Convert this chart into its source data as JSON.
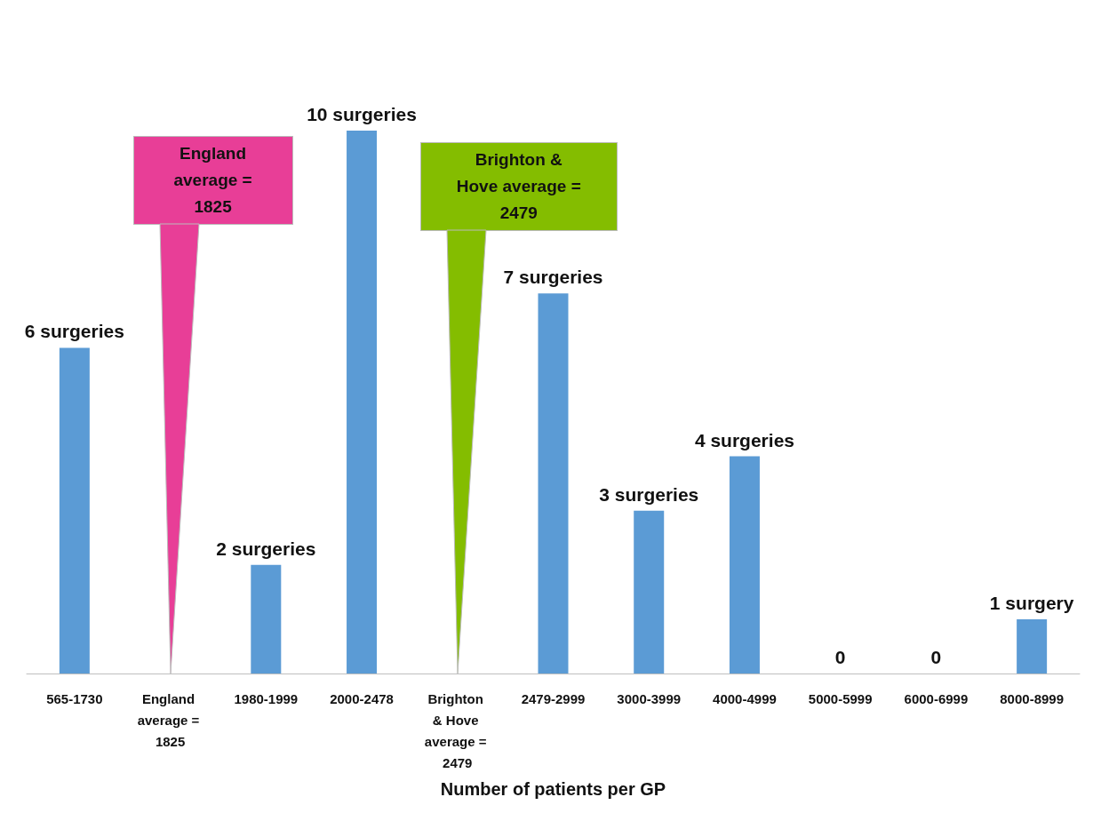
{
  "chart_data": {
    "type": "bar",
    "xlabel": "Number of patients per GP",
    "categories": [
      "565-1730",
      "England average = 1825",
      "1980-1999",
      "2000-2478",
      "Brighton & Hove average = 2479",
      "2479-2999",
      "3000-3999",
      "4000-4999",
      "5000-5999",
      "6000-6999",
      "8000-8999"
    ],
    "values": [
      6,
      null,
      2,
      10,
      null,
      7,
      3,
      4,
      0,
      0,
      1
    ],
    "value_labels": [
      "6 surgeries",
      null,
      "2 surgeries",
      "10 surgeries",
      null,
      "7 surgeries",
      "3 surgeries",
      "4 surgeries",
      "0",
      "0",
      "1 surgery"
    ],
    "color": "#5b9bd5",
    "annotations": [
      "England average = 1825",
      "Brighton & Hove average = 2479"
    ]
  }
}
